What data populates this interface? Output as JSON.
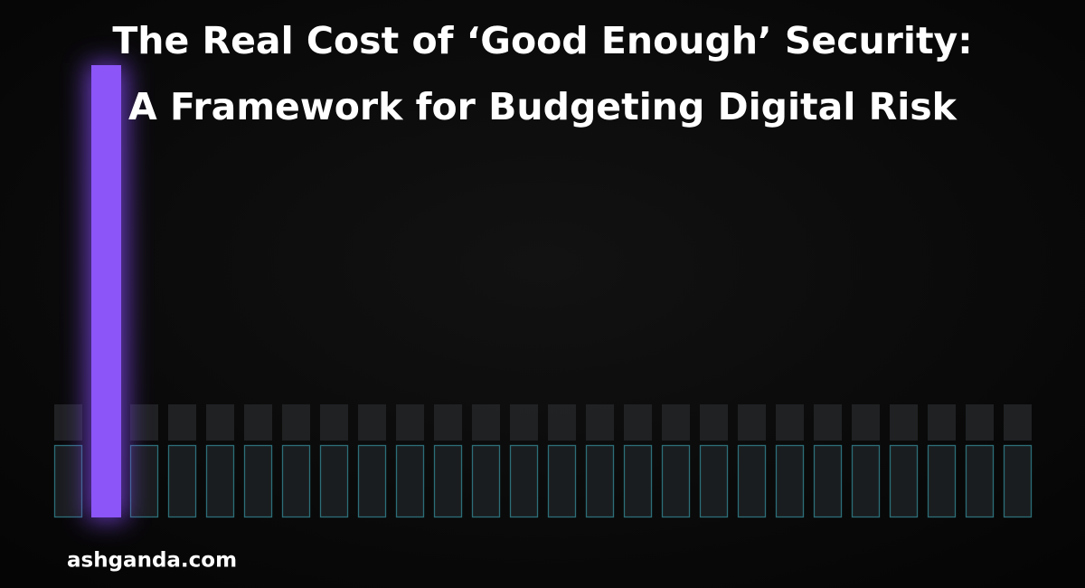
{
  "header": {
    "title_lines": [
      "The Real Cost of ‘Good Enough’ Security:",
      "A Framework for Budgeting Digital Risk"
    ]
  },
  "footer": {
    "site": "ashganda.com"
  }
}
